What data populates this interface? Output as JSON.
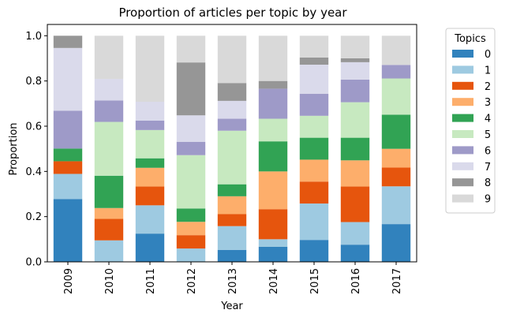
{
  "chart_data": {
    "type": "bar",
    "stacked": true,
    "title": "Proportion of articles per topic by year",
    "xlabel": "Year",
    "ylabel": "Proportion",
    "ylim": [
      0,
      1.05
    ],
    "yticks": [
      "0.0",
      "0.2",
      "0.4",
      "0.6",
      "0.8",
      "1.0"
    ],
    "categories": [
      "2009",
      "2010",
      "2011",
      "2012",
      "2013",
      "2014",
      "2015",
      "2016",
      "2017"
    ],
    "legend": {
      "title": "Topics",
      "placement": "outside-right"
    },
    "series": [
      {
        "name": "0",
        "color": "#3182bd",
        "values": [
          0.278,
          0.0,
          0.125,
          0.0,
          0.053,
          0.067,
          0.097,
          0.076,
          0.167
        ]
      },
      {
        "name": "1",
        "color": "#9ecae1",
        "values": [
          0.111,
          0.095,
          0.125,
          0.059,
          0.105,
          0.033,
          0.161,
          0.1,
          0.167
        ]
      },
      {
        "name": "2",
        "color": "#e6550d",
        "values": [
          0.056,
          0.095,
          0.083,
          0.059,
          0.053,
          0.133,
          0.097,
          0.157,
          0.083
        ]
      },
      {
        "name": "3",
        "color": "#fdae6b",
        "values": [
          0.0,
          0.048,
          0.083,
          0.059,
          0.079,
          0.167,
          0.097,
          0.116,
          0.083
        ]
      },
      {
        "name": "4",
        "color": "#31a354",
        "values": [
          0.056,
          0.143,
          0.042,
          0.059,
          0.053,
          0.133,
          0.097,
          0.1,
          0.151
        ]
      },
      {
        "name": "5",
        "color": "#c7e9c0",
        "values": [
          0.0,
          0.238,
          0.125,
          0.236,
          0.237,
          0.1,
          0.097,
          0.157,
          0.16
        ]
      },
      {
        "name": "6",
        "color": "#9e9ac8",
        "values": [
          0.167,
          0.095,
          0.042,
          0.059,
          0.053,
          0.133,
          0.097,
          0.1,
          0.06
        ]
      },
      {
        "name": "7",
        "color": "#dadaeb",
        "values": [
          0.278,
          0.095,
          0.083,
          0.117,
          0.079,
          0.0,
          0.129,
          0.077,
          0.0
        ]
      },
      {
        "name": "8",
        "color": "#969696",
        "values": [
          0.054,
          0.0,
          0.0,
          0.234,
          0.079,
          0.034,
          0.032,
          0.017,
          0.0
        ]
      },
      {
        "name": "9",
        "color": "#d9d9d9",
        "values": [
          0.0,
          0.191,
          0.292,
          0.118,
          0.209,
          0.2,
          0.096,
          0.1,
          0.129
        ]
      }
    ]
  }
}
